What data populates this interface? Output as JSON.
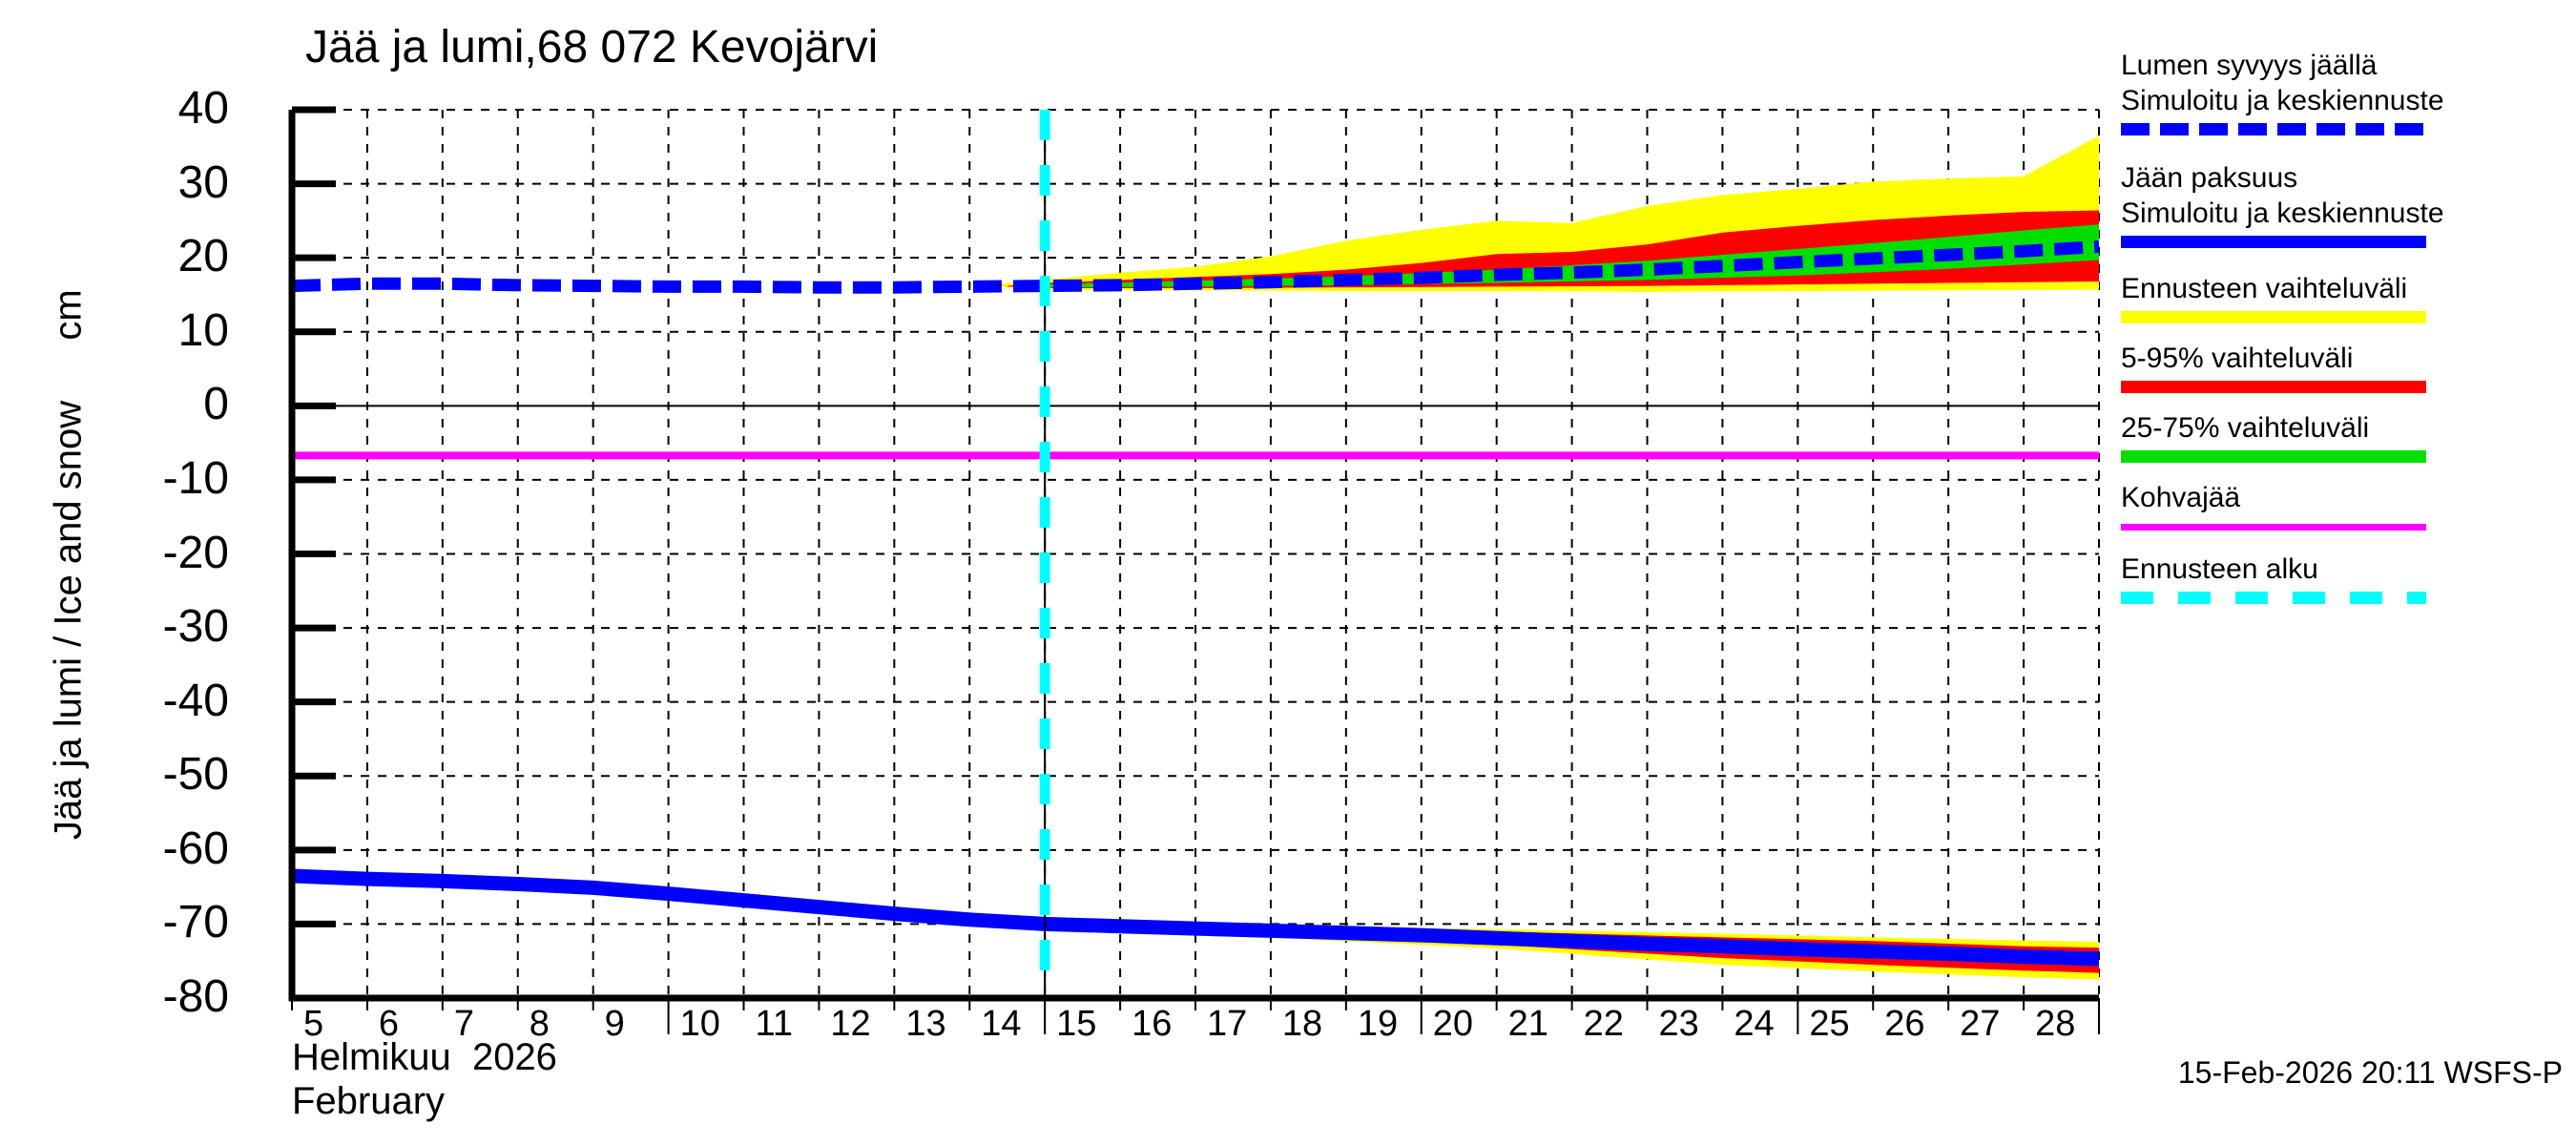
{
  "title": "Jää ja lumi,68 072 Kevojärvi",
  "y_axis": {
    "label": "Jää ja lumi / Ice and snow",
    "unit": "cm",
    "ticks": [
      40,
      30,
      20,
      10,
      0,
      -10,
      -20,
      -30,
      -40,
      -50,
      -60,
      -70,
      -80
    ]
  },
  "x_axis": {
    "label_fi": "Helmikuu  2026",
    "label_en": "February",
    "tick_days": [
      5,
      6,
      7,
      8,
      9,
      10,
      11,
      12,
      13,
      14,
      15,
      16,
      17,
      18,
      19,
      20,
      21,
      22,
      23,
      24,
      25,
      26,
      27,
      28
    ],
    "major_tick_days": [
      10,
      15,
      20,
      25,
      29
    ]
  },
  "footer": {
    "timestamp": "15-Feb-2026 20:11 WSFS-P"
  },
  "colors": {
    "simulated_line": "#0000ff",
    "forecast_range": "#ffff00",
    "range_5_95": "#ff0000",
    "range_25_75": "#00df00",
    "kohvajaa": "#ff00ff",
    "forecast_start": "#00ffff",
    "grid": "#000000",
    "axis": "#000000"
  },
  "legend": {
    "items": [
      {
        "line1": "Lumen syvyys jäällä",
        "line2": "Simuloitu ja keskiennuste",
        "style": "dashed",
        "color": "#0000ff"
      },
      {
        "line1": "Jään paksuus",
        "line2": "Simuloitu ja keskiennuste",
        "style": "solid",
        "color": "#0000ff"
      },
      {
        "line1": "Ennusteen vaihteluväli",
        "line2": "",
        "style": "solid",
        "color": "#ffff00"
      },
      {
        "line1": "5-95% vaihteluväli",
        "line2": "",
        "style": "solid",
        "color": "#ff0000"
      },
      {
        "line1": "25-75% vaihteluväli",
        "line2": "",
        "style": "solid",
        "color": "#00df00"
      },
      {
        "line1": "Kohvajää",
        "line2": "",
        "style": "solid-thin",
        "color": "#ff00ff"
      },
      {
        "line1": "Ennusteen alku",
        "line2": "",
        "style": "dashed-sparse",
        "color": "#00ffff"
      }
    ]
  },
  "chart_data": {
    "type": "line",
    "title": "Jää ja lumi,68 072 Kevojärvi",
    "xlabel": "Helmikuu 2026 / February",
    "ylabel": "Jää ja lumi / Ice and snow (cm)",
    "xlim": [
      5,
      29
    ],
    "ylim": [
      -80,
      40
    ],
    "yticks": [
      40,
      30,
      20,
      10,
      0,
      -10,
      -20,
      -30,
      -40,
      -50,
      -60,
      -70,
      -80
    ],
    "xticks": [
      5,
      6,
      7,
      8,
      9,
      10,
      11,
      12,
      13,
      14,
      15,
      16,
      17,
      18,
      19,
      20,
      21,
      22,
      23,
      24,
      25,
      26,
      27,
      28
    ],
    "grid": true,
    "forecast_start_day": 15,
    "series": [
      {
        "name": "Lumen syvyys jäällä - Simuloitu ja keskiennuste",
        "color": "#0000ff",
        "style": "dashed",
        "unit": "cm",
        "points": [
          [
            5,
            16.2
          ],
          [
            6,
            16.5
          ],
          [
            7,
            16.5
          ],
          [
            8,
            16.3
          ],
          [
            9,
            16.2
          ],
          [
            10,
            16.1
          ],
          [
            11,
            16.1
          ],
          [
            12,
            16.0
          ],
          [
            13,
            16.0
          ],
          [
            14,
            16.1
          ],
          [
            15,
            16.2
          ],
          [
            16,
            16.3
          ],
          [
            17,
            16.5
          ],
          [
            18,
            16.7
          ],
          [
            19,
            17.0
          ],
          [
            20,
            17.3
          ],
          [
            21,
            17.7
          ],
          [
            22,
            18.0
          ],
          [
            23,
            18.4
          ],
          [
            24,
            18.9
          ],
          [
            25,
            19.4
          ],
          [
            26,
            19.9
          ],
          [
            27,
            20.4
          ],
          [
            28,
            20.9
          ],
          [
            29,
            21.5
          ]
        ]
      },
      {
        "name": "Jään paksuus - Simuloitu ja keskiennuste",
        "color": "#0000ff",
        "style": "solid",
        "unit": "cm",
        "points": [
          [
            5,
            -63.5
          ],
          [
            6,
            -63.9
          ],
          [
            7,
            -64.2
          ],
          [
            8,
            -64.6
          ],
          [
            9,
            -65.1
          ],
          [
            10,
            -65.9
          ],
          [
            11,
            -66.8
          ],
          [
            12,
            -67.7
          ],
          [
            13,
            -68.6
          ],
          [
            14,
            -69.4
          ],
          [
            15,
            -70.0
          ],
          [
            16,
            -70.3
          ],
          [
            17,
            -70.6
          ],
          [
            18,
            -70.9
          ],
          [
            19,
            -71.2
          ],
          [
            20,
            -71.5
          ],
          [
            21,
            -71.9
          ],
          [
            22,
            -72.3
          ],
          [
            23,
            -72.7
          ],
          [
            24,
            -73.0
          ],
          [
            25,
            -73.4
          ],
          [
            26,
            -73.7
          ],
          [
            27,
            -74.0
          ],
          [
            28,
            -74.4
          ],
          [
            29,
            -74.7
          ]
        ]
      }
    ],
    "bands": [
      {
        "name": "snow forecast range (Ennusteen vaihteluväli)",
        "color": "#ffff00",
        "upper": [
          [
            14.2,
            16.3
          ],
          [
            15,
            17.0
          ],
          [
            16,
            18.0
          ],
          [
            17,
            18.8
          ],
          [
            18,
            20.2
          ],
          [
            19,
            22.3
          ],
          [
            20,
            23.8
          ],
          [
            21,
            25.0
          ],
          [
            22,
            24.7
          ],
          [
            23,
            27.0
          ],
          [
            24,
            28.5
          ],
          [
            25,
            29.3
          ],
          [
            26,
            30.3
          ],
          [
            27,
            30.7
          ],
          [
            28,
            31.0
          ],
          [
            29,
            36.5
          ]
        ],
        "lower": [
          [
            14.2,
            16.2
          ],
          [
            15,
            15.7
          ],
          [
            17,
            15.6
          ],
          [
            19,
            15.5
          ],
          [
            21,
            15.5
          ],
          [
            23,
            15.4
          ],
          [
            25,
            15.5
          ],
          [
            27,
            15.6
          ],
          [
            29,
            15.7
          ]
        ]
      },
      {
        "name": "snow 5-95% range",
        "color": "#ff0000",
        "upper": [
          [
            14.5,
            16.2
          ],
          [
            15,
            16.6
          ],
          [
            16,
            17.0
          ],
          [
            17,
            17.4
          ],
          [
            18,
            17.8
          ],
          [
            19,
            18.4
          ],
          [
            20,
            19.3
          ],
          [
            21,
            20.5
          ],
          [
            22,
            20.8
          ],
          [
            23,
            21.8
          ],
          [
            24,
            23.4
          ],
          [
            25,
            24.3
          ],
          [
            26,
            25.1
          ],
          [
            27,
            25.7
          ],
          [
            28,
            26.2
          ],
          [
            29,
            26.4
          ]
        ],
        "lower": [
          [
            14.5,
            16.1
          ],
          [
            15,
            15.9
          ],
          [
            17,
            15.9
          ],
          [
            19,
            16.0
          ],
          [
            21,
            16.1
          ],
          [
            23,
            16.2
          ],
          [
            25,
            16.4
          ],
          [
            27,
            16.6
          ],
          [
            29,
            16.8
          ]
        ]
      },
      {
        "name": "snow 25-75% range",
        "color": "#00df00",
        "upper": [
          [
            14.8,
            16.2
          ],
          [
            15,
            16.4
          ],
          [
            17,
            16.9
          ],
          [
            19,
            17.5
          ],
          [
            21,
            18.4
          ],
          [
            23,
            19.6
          ],
          [
            25,
            21.2
          ],
          [
            26,
            22.0
          ],
          [
            27,
            22.8
          ],
          [
            28,
            23.7
          ],
          [
            29,
            24.5
          ]
        ],
        "lower": [
          [
            14.8,
            16.1
          ],
          [
            15,
            16.0
          ],
          [
            17,
            16.1
          ],
          [
            19,
            16.3
          ],
          [
            21,
            16.6
          ],
          [
            23,
            17.0
          ],
          [
            25,
            17.6
          ],
          [
            27,
            18.5
          ],
          [
            29,
            19.7
          ]
        ]
      },
      {
        "name": "ice forecast range (Ennusteen vaihteluväli)",
        "color": "#ffff00",
        "upper": [
          [
            14.5,
            -69.6
          ],
          [
            15,
            -69.8
          ],
          [
            18,
            -70.2
          ],
          [
            21,
            -70.7
          ],
          [
            24,
            -71.3
          ],
          [
            26,
            -71.8
          ],
          [
            28,
            -72.2
          ],
          [
            29,
            -72.4
          ]
        ],
        "lower": [
          [
            14.5,
            -69.8
          ],
          [
            15,
            -70.4
          ],
          [
            18,
            -71.8
          ],
          [
            21,
            -73.3
          ],
          [
            24,
            -75.5
          ],
          [
            26,
            -76.4
          ],
          [
            28,
            -77.2
          ],
          [
            29,
            -77.5
          ]
        ]
      },
      {
        "name": "ice 5-95% range",
        "color": "#ff0000",
        "upper": [
          [
            14.6,
            -69.7
          ],
          [
            15,
            -69.9
          ],
          [
            18,
            -70.4
          ],
          [
            21,
            -71.0
          ],
          [
            24,
            -71.8
          ],
          [
            26,
            -72.3
          ],
          [
            28,
            -73.0
          ],
          [
            29,
            -73.2
          ]
        ],
        "lower": [
          [
            14.6,
            -69.9
          ],
          [
            15,
            -70.3
          ],
          [
            18,
            -71.5
          ],
          [
            21,
            -72.8
          ],
          [
            24,
            -74.6
          ],
          [
            26,
            -75.5
          ],
          [
            28,
            -76.3
          ],
          [
            29,
            -76.6
          ]
        ]
      },
      {
        "name": "ice 25-75% range",
        "color": "#00df00",
        "upper": [
          [
            15,
            -69.9
          ],
          [
            18,
            -70.5
          ],
          [
            21,
            -71.2
          ],
          [
            24,
            -72.2
          ],
          [
            26,
            -72.8
          ],
          [
            28,
            -73.5
          ],
          [
            29,
            -73.8
          ]
        ],
        "lower": [
          [
            15,
            -70.2
          ],
          [
            18,
            -71.2
          ],
          [
            21,
            -72.5
          ],
          [
            24,
            -73.7
          ],
          [
            26,
            -74.3
          ],
          [
            28,
            -75.0
          ],
          [
            29,
            -75.3
          ]
        ]
      }
    ],
    "reference_lines": [
      {
        "name": "Kohvajää",
        "orientation": "horizontal",
        "value": -6.7,
        "color": "#ff00ff",
        "style": "solid"
      },
      {
        "name": "Ennusteen alku",
        "orientation": "vertical",
        "value": 15,
        "color": "#00ffff",
        "style": "dashed"
      }
    ],
    "legend_position": "upper right outside",
    "annotation": "15-Feb-2026 20:11 WSFS-P"
  }
}
